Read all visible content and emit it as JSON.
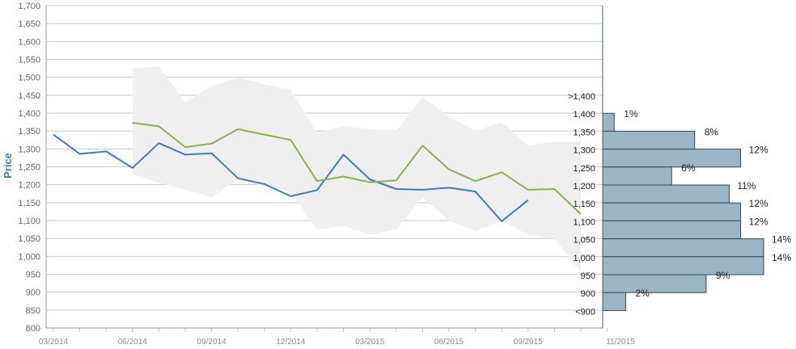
{
  "chart_data": {
    "type": "line",
    "ylabel": "Price",
    "ylim": [
      800,
      1700
    ],
    "y_ticks": [
      "800",
      "850",
      "900",
      "950",
      "1,000",
      "1,050",
      "1,100",
      "1,150",
      "1,200",
      "1,250",
      "1,300",
      "1,350",
      "1,400",
      "1,450",
      "1,500",
      "1,550",
      "1,600",
      "1,650",
      "1,700"
    ],
    "y_tick_values": [
      800,
      850,
      900,
      950,
      1000,
      1050,
      1100,
      1150,
      1200,
      1250,
      1300,
      1350,
      1400,
      1450,
      1500,
      1550,
      1600,
      1650,
      1700
    ],
    "x_ticks": [
      "03/2014",
      "06/2014",
      "09/2014",
      "12/2014",
      "03/2015",
      "06/2015",
      "09/2015",
      "11/2015"
    ],
    "x_tick_months": [
      "2014-03",
      "2014-06",
      "2014-09",
      "2014-12",
      "2015-03",
      "2015-06",
      "2015-09",
      "2015-11"
    ],
    "grid": true,
    "colors": {
      "blue_series": "#3a7cc9",
      "green_series": "#8cb04a",
      "band": "#efefef",
      "bars": "#9bb5c4",
      "bar_stroke": "#2f4a5c",
      "grid": "#c8c8c8",
      "axis": "#3e5f7f"
    },
    "series": [
      {
        "x": [
          "2014-03",
          "2014-04",
          "2014-05",
          "2014-06",
          "2014-07",
          "2014-08",
          "2014-09",
          "2014-10",
          "2014-11",
          "2014-12",
          "2015-01",
          "2015-02",
          "2015-03",
          "2015-04",
          "2015-05",
          "2015-06",
          "2015-07",
          "2015-08",
          "2015-09"
        ],
        "values": [
          1340,
          1286,
          1293,
          1247,
          1316,
          1284,
          1288,
          1218,
          1202,
          1168,
          1185,
          1284,
          1215,
          1188,
          1186,
          1192,
          1181,
          1098,
          1157
        ]
      },
      {
        "x": [
          "2014-06",
          "2014-07",
          "2014-08",
          "2014-09",
          "2014-10",
          "2014-11",
          "2014-12",
          "2015-01",
          "2015-02",
          "2015-03",
          "2015-04",
          "2015-05",
          "2015-06",
          "2015-07",
          "2015-08",
          "2015-09",
          "2015-10",
          "2015-11"
        ],
        "values": [
          1373,
          1363,
          1305,
          1315,
          1355,
          1340,
          1325,
          1210,
          1223,
          1207,
          1212,
          1309,
          1243,
          1210,
          1235,
          1186,
          1188,
          1118
        ]
      }
    ],
    "band": {
      "x": [
        "2014-06",
        "2014-07",
        "2014-08",
        "2014-09",
        "2014-10",
        "2014-11",
        "2014-12",
        "2015-01",
        "2015-02",
        "2015-03",
        "2015-04",
        "2015-05",
        "2015-06",
        "2015-07",
        "2015-08",
        "2015-09",
        "2015-10",
        "2015-11"
      ],
      "upper": [
        1525,
        1530,
        1430,
        1475,
        1500,
        1480,
        1465,
        1345,
        1365,
        1355,
        1350,
        1445,
        1390,
        1350,
        1375,
        1310,
        1320,
        1320
      ],
      "lower": [
        1230,
        1205,
        1185,
        1165,
        1215,
        1195,
        1180,
        1075,
        1085,
        1060,
        1075,
        1165,
        1100,
        1070,
        1100,
        1060,
        1050,
        955
      ]
    },
    "distribution": [
      {
        "label": ">1,400",
        "pct": ""
      },
      {
        "label": "1,400",
        "pct": "1%",
        "value": 1
      },
      {
        "label": "1,350",
        "pct": "8%",
        "value": 8
      },
      {
        "label": "1,300",
        "pct": "12%",
        "value": 12
      },
      {
        "label": "1,250",
        "pct": "6%",
        "value": 6
      },
      {
        "label": "1,200",
        "pct": "11%",
        "value": 11
      },
      {
        "label": "1,150",
        "pct": "12%",
        "value": 12
      },
      {
        "label": "1,100",
        "pct": "12%",
        "value": 12
      },
      {
        "label": "1,050",
        "pct": "14%",
        "value": 14
      },
      {
        "label": "1,000",
        "pct": "14%",
        "value": 14
      },
      {
        "label": "950",
        "pct": "9%",
        "value": 9
      },
      {
        "label": "900",
        "pct": "2%",
        "value": 2
      },
      {
        "label": "<900",
        "pct": ""
      }
    ]
  }
}
